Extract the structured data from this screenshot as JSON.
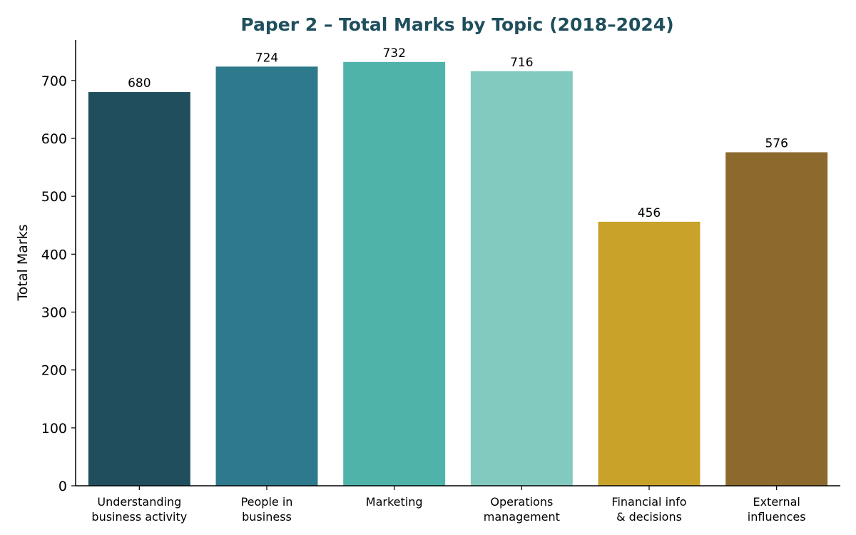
{
  "chart_data": {
    "type": "bar",
    "title": "Paper 2 – Total Marks by Topic (2018–2024)",
    "xlabel": "",
    "ylabel": "Total Marks",
    "categories": [
      [
        "Understanding",
        "business activity"
      ],
      [
        "People in",
        "business"
      ],
      [
        "Marketing"
      ],
      [
        "Operations",
        "management"
      ],
      [
        "Financial info",
        "& decisions"
      ],
      [
        "External",
        "influences"
      ]
    ],
    "values": [
      680,
      724,
      732,
      716,
      456,
      576
    ],
    "colors": [
      "#214e5c",
      "#2e7a8c",
      "#50b3aa",
      "#82c9bf",
      "#c9a229",
      "#8c6a2d"
    ],
    "ylim": [
      0,
      770
    ],
    "yticks": [
      0,
      100,
      200,
      300,
      400,
      500,
      600,
      700
    ],
    "grid": false,
    "title_color": "#1f4e5c"
  }
}
